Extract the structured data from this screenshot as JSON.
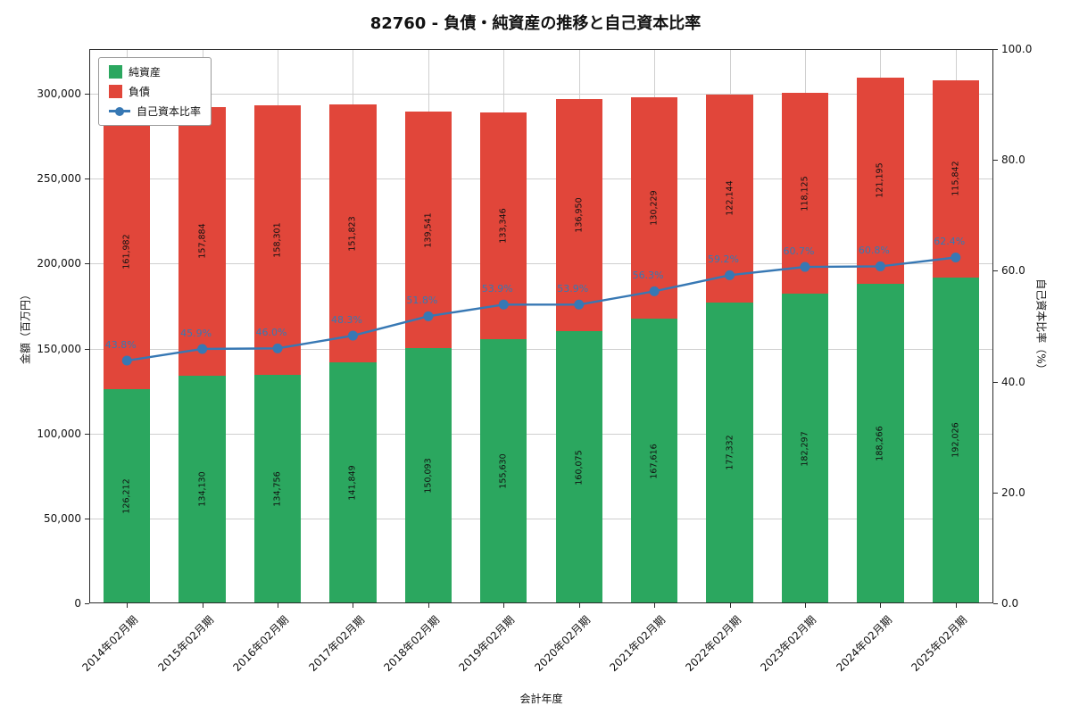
{
  "title": "82760 - 負債・純資産の推移と自己資本比率",
  "chart_data": {
    "type": "bar",
    "stacked": true,
    "categories": [
      "2014年02月期",
      "2015年02月期",
      "2016年02月期",
      "2017年02月期",
      "2018年02月期",
      "2019年02月期",
      "2020年02月期",
      "2021年02月期",
      "2022年02月期",
      "2023年02月期",
      "2024年02月期",
      "2025年02月期"
    ],
    "series": [
      {
        "name": "純資産",
        "color": "#2ba75f",
        "values": [
          126212,
          134130,
          134756,
          141849,
          150093,
          155630,
          160075,
          167616,
          177332,
          182297,
          188266,
          192026
        ]
      },
      {
        "name": "負債",
        "color": "#e1463a",
        "values": [
          161982,
          157884,
          158301,
          151823,
          139541,
          133346,
          136950,
          130229,
          122144,
          118125,
          121195,
          115842
        ]
      }
    ],
    "line": {
      "name": "自己資本比率",
      "color": "#3778b4",
      "unit": "%",
      "values": [
        43.8,
        45.9,
        46.0,
        48.3,
        51.8,
        53.9,
        53.9,
        56.3,
        59.2,
        60.7,
        60.8,
        62.4
      ]
    },
    "xlabel": "会計年度",
    "ylabel_left": "金額（百万円）",
    "ylabel_right": "自己資本比率（%）",
    "ylim_left": [
      0,
      326300
    ],
    "ylim_right": [
      0,
      100
    ],
    "yticks_left": [
      0,
      50000,
      100000,
      150000,
      200000,
      250000,
      300000
    ],
    "yticks_right": [
      0,
      20,
      40,
      60,
      80,
      100
    ],
    "grid": true,
    "legend_position": "upper left"
  }
}
